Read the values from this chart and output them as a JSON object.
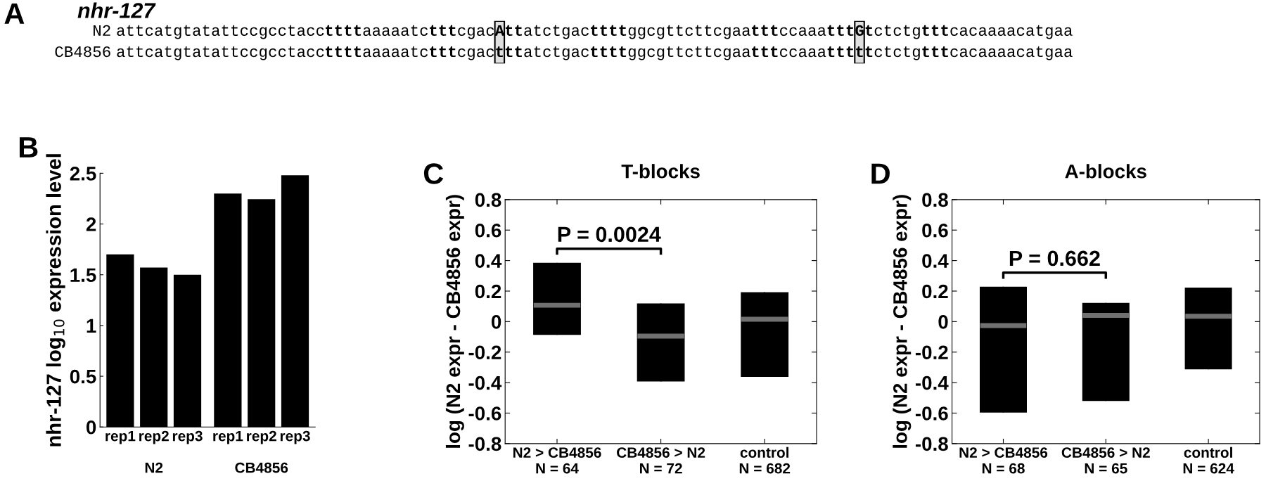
{
  "chart_data": [
    {
      "type": "other",
      "title": "nhr-127",
      "annotations": [
        "A",
        "N2",
        "attcatgtatattccgcctaccttttaaaaatctttcgacAttatctgacttttggcgttcttcgaatttccaaatttGtctctgtttcacaaaacatgaa",
        "CB4856",
        "attcatgtatattccgcctaccttttaaaaatctttcgactttatctgacttttggcgttcttcgaatttccaaatttttctctgtttcacaaaacatgaa"
      ]
    },
    {
      "type": "bar",
      "ylabel": "nhr-127 log$_{10}$ expression level",
      "categories": [
        "rep1",
        "rep2",
        "rep3",
        "rep1",
        "rep2",
        "rep3"
      ],
      "values": [
        1.7,
        1.57,
        1.5,
        2.3,
        2.245,
        2.48
      ],
      "color": "#000000",
      "ylim": [
        0,
        2.5
      ],
      "yticks": [
        0,
        0.5,
        1,
        1.5,
        2,
        2.5
      ],
      "annotations": [
        "B",
        "N2",
        "CB4856"
      ]
    },
    {
      "type": "box",
      "title": "T-blocks",
      "ylabel": "log (N2 expr - CB4856 expr)",
      "categories": [
        "N2 > CB4856\nN = 64",
        "CB4856 > N2\nN = 72",
        "control\nN = 682"
      ],
      "series": [
        {
          "color": "#000000",
          "boxes": [
            {
              "low": -0.084,
              "q1": -0.084,
              "median": 0.107,
              "q3": 0.382,
              "high": 0.382
            },
            {
              "low": -0.39,
              "q1": -0.39,
              "median": -0.095,
              "q3": 0.116,
              "high": 0.116
            },
            {
              "low": -0.36,
              "q1": -0.36,
              "median": 0.015,
              "q3": 0.19,
              "high": 0.19
            }
          ]
        }
      ],
      "ylim": [
        -0.8,
        0.8
      ],
      "yticks": [
        -0.8,
        -0.6,
        -0.4,
        -0.2,
        0,
        0.2,
        0.4,
        0.6,
        0.8
      ],
      "annotations": [
        "C",
        "P = 0.0024"
      ]
    },
    {
      "type": "box",
      "title": "A-blocks",
      "ylabel": "log (N2 expr - CB4856 expr)",
      "categories": [
        "N2 > CB4856\nN = 68",
        "CB4856 > N2\nN = 65",
        "control\nN = 624"
      ],
      "series": [
        {
          "color": "#000000",
          "boxes": [
            {
              "low": -0.593,
              "q1": -0.593,
              "median": -0.026,
              "q3": 0.225,
              "high": 0.225
            },
            {
              "low": -0.517,
              "q1": -0.517,
              "median": 0.041,
              "q3": 0.12,
              "high": 0.12
            },
            {
              "low": -0.31,
              "q1": -0.31,
              "median": 0.035,
              "q3": 0.22,
              "high": 0.22
            }
          ]
        }
      ],
      "ylim": [
        -0.8,
        0.8
      ],
      "yticks": [
        -0.8,
        -0.6,
        -0.4,
        -0.2,
        0,
        0.2,
        0.4,
        0.6,
        0.8
      ],
      "annotations": [
        "D",
        "P = 0.662"
      ]
    }
  ]
}
